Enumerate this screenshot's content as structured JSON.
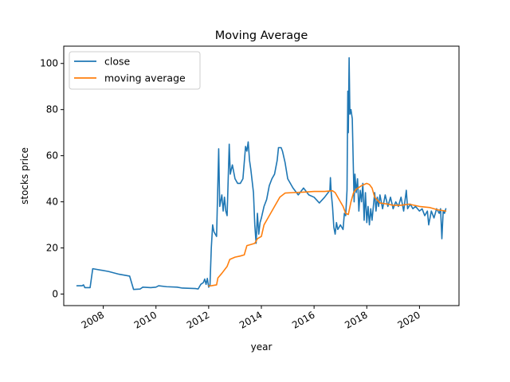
{
  "chart_data": {
    "type": "line",
    "title": "Moving Average",
    "xlabel": "year",
    "ylabel": "stocks price",
    "xlim": [
      2006.5,
      2021.5
    ],
    "ylim": [
      -5,
      107.5
    ],
    "x_ticks": [
      2008,
      2010,
      2012,
      2014,
      2016,
      2018,
      2020
    ],
    "x_tick_labels": [
      "2008",
      "2010",
      "2012",
      "2014",
      "2016",
      "2018",
      "2020"
    ],
    "y_ticks": [
      0,
      20,
      40,
      60,
      80,
      100
    ],
    "y_tick_labels": [
      "0",
      "20",
      "40",
      "60",
      "80",
      "100"
    ],
    "grid": false,
    "legend": {
      "position": "top-left"
    },
    "colors": {
      "close": "#1f77b4",
      "moving_average": "#ff7f0e"
    },
    "series": [
      {
        "name": "close",
        "color": "#1f77b4",
        "points": [
          [
            2007.0,
            3.6
          ],
          [
            2007.2,
            3.6
          ],
          [
            2007.25,
            4.0
          ],
          [
            2007.3,
            2.8
          ],
          [
            2007.5,
            2.8
          ],
          [
            2007.6,
            11.0
          ],
          [
            2008.2,
            9.8
          ],
          [
            2008.6,
            8.6
          ],
          [
            2009.0,
            7.8
          ],
          [
            2009.15,
            2.0
          ],
          [
            2009.4,
            2.2
          ],
          [
            2009.5,
            3.0
          ],
          [
            2009.8,
            2.8
          ],
          [
            2010.0,
            3.0
          ],
          [
            2010.1,
            3.6
          ],
          [
            2010.4,
            3.2
          ],
          [
            2010.8,
            3.0
          ],
          [
            2011.0,
            2.6
          ],
          [
            2011.5,
            2.4
          ],
          [
            2011.6,
            2.2
          ],
          [
            2011.7,
            4.2
          ],
          [
            2011.8,
            5.0
          ],
          [
            2011.85,
            6.5
          ],
          [
            2011.9,
            4.2
          ],
          [
            2011.95,
            6.8
          ],
          [
            2012.0,
            3.0
          ],
          [
            2012.05,
            4.0
          ],
          [
            2012.1,
            20.0
          ],
          [
            2012.15,
            30.0
          ],
          [
            2012.2,
            27.0
          ],
          [
            2012.3,
            25.0
          ],
          [
            2012.38,
            63.0
          ],
          [
            2012.42,
            38.0
          ],
          [
            2012.5,
            43.0
          ],
          [
            2012.55,
            36.0
          ],
          [
            2012.6,
            42.0
          ],
          [
            2012.65,
            36.0
          ],
          [
            2012.7,
            34.0
          ],
          [
            2012.78,
            65.0
          ],
          [
            2012.82,
            52.0
          ],
          [
            2012.9,
            56.0
          ],
          [
            2013.0,
            50.0
          ],
          [
            2013.1,
            48.0
          ],
          [
            2013.2,
            48.0
          ],
          [
            2013.3,
            50.0
          ],
          [
            2013.4,
            64.0
          ],
          [
            2013.45,
            62.0
          ],
          [
            2013.5,
            66.0
          ],
          [
            2013.55,
            58.0
          ],
          [
            2013.6,
            54.0
          ],
          [
            2013.7,
            44.0
          ],
          [
            2013.75,
            30.0
          ],
          [
            2013.8,
            22.0
          ],
          [
            2013.85,
            35.0
          ],
          [
            2013.9,
            26.0
          ],
          [
            2013.95,
            31.0
          ],
          [
            2014.0,
            33.0
          ],
          [
            2014.1,
            38.0
          ],
          [
            2014.2,
            41.0
          ],
          [
            2014.3,
            47.0
          ],
          [
            2014.4,
            50.0
          ],
          [
            2014.5,
            52.0
          ],
          [
            2014.6,
            58.0
          ],
          [
            2014.65,
            63.5
          ],
          [
            2014.75,
            63.5
          ],
          [
            2014.8,
            62.0
          ],
          [
            2014.9,
            57.0
          ],
          [
            2015.0,
            50.0
          ],
          [
            2015.2,
            46.0
          ],
          [
            2015.4,
            43.0
          ],
          [
            2015.6,
            46.0
          ],
          [
            2015.8,
            43.0
          ],
          [
            2016.0,
            42.0
          ],
          [
            2016.2,
            39.5
          ],
          [
            2016.4,
            42.0
          ],
          [
            2016.6,
            45.0
          ],
          [
            2016.62,
            50.5
          ],
          [
            2016.65,
            44.0
          ],
          [
            2016.7,
            38.0
          ],
          [
            2016.75,
            29.0
          ],
          [
            2016.8,
            26.0
          ],
          [
            2016.85,
            31.0
          ],
          [
            2016.9,
            28.0
          ],
          [
            2017.0,
            30.0
          ],
          [
            2017.1,
            28.0
          ],
          [
            2017.15,
            35.0
          ],
          [
            2017.2,
            34.0
          ],
          [
            2017.25,
            45.0
          ],
          [
            2017.28,
            88.0
          ],
          [
            2017.3,
            70.0
          ],
          [
            2017.33,
            102.5
          ],
          [
            2017.36,
            78.0
          ],
          [
            2017.4,
            80.0
          ],
          [
            2017.45,
            76.0
          ],
          [
            2017.5,
            50.0
          ],
          [
            2017.52,
            40.0
          ],
          [
            2017.55,
            52.0
          ],
          [
            2017.6,
            44.0
          ],
          [
            2017.65,
            50.0
          ],
          [
            2017.7,
            36.0
          ],
          [
            2017.75,
            45.0
          ],
          [
            2017.8,
            40.0
          ],
          [
            2017.85,
            48.0
          ],
          [
            2017.9,
            32.0
          ],
          [
            2017.95,
            44.0
          ],
          [
            2018.0,
            31.0
          ],
          [
            2018.05,
            38.0
          ],
          [
            2018.1,
            30.0
          ],
          [
            2018.15,
            37.0
          ],
          [
            2018.2,
            32.0
          ],
          [
            2018.3,
            44.0
          ],
          [
            2018.35,
            36.0
          ],
          [
            2018.4,
            42.0
          ],
          [
            2018.45,
            38.0
          ],
          [
            2018.5,
            43.0
          ],
          [
            2018.6,
            37.0
          ],
          [
            2018.7,
            43.0
          ],
          [
            2018.8,
            38.0
          ],
          [
            2018.9,
            42.0
          ],
          [
            2019.0,
            37.0
          ],
          [
            2019.1,
            40.0
          ],
          [
            2019.2,
            38.0
          ],
          [
            2019.3,
            42.0
          ],
          [
            2019.4,
            36.0
          ],
          [
            2019.5,
            45.0
          ],
          [
            2019.55,
            37.0
          ],
          [
            2019.65,
            39.0
          ],
          [
            2019.75,
            37.0
          ],
          [
            2019.85,
            38.0
          ],
          [
            2020.0,
            36.0
          ],
          [
            2020.1,
            37.0
          ],
          [
            2020.2,
            34.0
          ],
          [
            2020.3,
            36.0
          ],
          [
            2020.35,
            30.0
          ],
          [
            2020.45,
            36.0
          ],
          [
            2020.55,
            33.0
          ],
          [
            2020.65,
            37.0
          ],
          [
            2020.75,
            35.0
          ],
          [
            2020.8,
            37.0
          ],
          [
            2020.85,
            24.0
          ],
          [
            2020.9,
            36.0
          ],
          [
            2020.95,
            35.0
          ],
          [
            2021.0,
            37.0
          ]
        ]
      },
      {
        "name": "moving average",
        "color": "#ff7f0e",
        "points": [
          [
            2012.0,
            3.5
          ],
          [
            2012.1,
            3.6
          ],
          [
            2012.3,
            4.0
          ],
          [
            2012.35,
            7.0
          ],
          [
            2012.5,
            9.0
          ],
          [
            2012.7,
            12.0
          ],
          [
            2012.8,
            15.0
          ],
          [
            2013.0,
            16.0
          ],
          [
            2013.2,
            16.5
          ],
          [
            2013.35,
            17.0
          ],
          [
            2013.45,
            21.0
          ],
          [
            2013.6,
            21.5
          ],
          [
            2013.75,
            22.0
          ],
          [
            2013.85,
            24.0
          ],
          [
            2014.0,
            25.0
          ],
          [
            2014.1,
            30.0
          ],
          [
            2014.3,
            34.0
          ],
          [
            2014.5,
            38.0
          ],
          [
            2014.7,
            42.0
          ],
          [
            2014.9,
            43.8
          ],
          [
            2015.2,
            44.0
          ],
          [
            2015.6,
            44.2
          ],
          [
            2016.0,
            44.5
          ],
          [
            2016.4,
            44.5
          ],
          [
            2016.7,
            44.8
          ],
          [
            2016.8,
            44.0
          ],
          [
            2017.0,
            40.0
          ],
          [
            2017.1,
            38.0
          ],
          [
            2017.2,
            35.0
          ],
          [
            2017.3,
            34.5
          ],
          [
            2017.4,
            40.0
          ],
          [
            2017.5,
            44.0
          ],
          [
            2017.6,
            45.5
          ],
          [
            2017.8,
            47.0
          ],
          [
            2018.0,
            48.0
          ],
          [
            2018.1,
            47.5
          ],
          [
            2018.2,
            46.0
          ],
          [
            2018.3,
            42.0
          ],
          [
            2018.5,
            39.5
          ],
          [
            2018.8,
            39.0
          ],
          [
            2019.0,
            38.5
          ],
          [
            2019.3,
            38.5
          ],
          [
            2019.6,
            39.0
          ],
          [
            2020.0,
            38.0
          ],
          [
            2020.4,
            37.5
          ],
          [
            2020.7,
            36.5
          ],
          [
            2021.0,
            36.0
          ]
        ]
      }
    ]
  }
}
